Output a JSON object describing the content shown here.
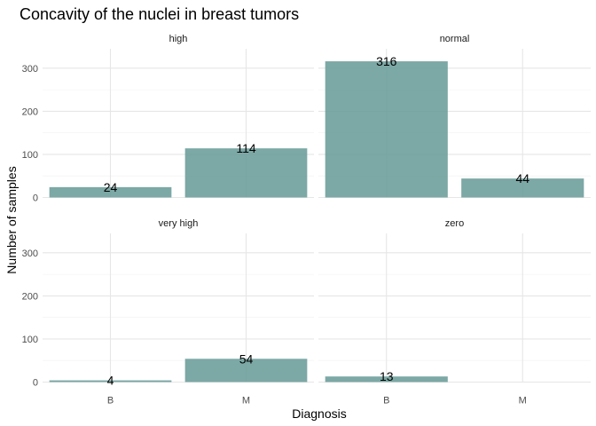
{
  "chart_data": {
    "type": "bar",
    "title": "Concavity of the nuclei in breast tumors",
    "xlabel": "Diagnosis",
    "ylabel": "Number of samples",
    "categories": [
      "B",
      "M"
    ],
    "ylim": [
      0,
      345
    ],
    "y_ticks": [
      0,
      100,
      200,
      300
    ],
    "grid": true,
    "bar_color": "#6a9c99",
    "facets": [
      {
        "name": "high",
        "values": [
          24,
          114
        ]
      },
      {
        "name": "normal",
        "values": [
          316,
          44
        ]
      },
      {
        "name": "very high",
        "values": [
          4,
          54
        ]
      },
      {
        "name": "zero",
        "values": [
          13,
          null
        ]
      }
    ]
  }
}
